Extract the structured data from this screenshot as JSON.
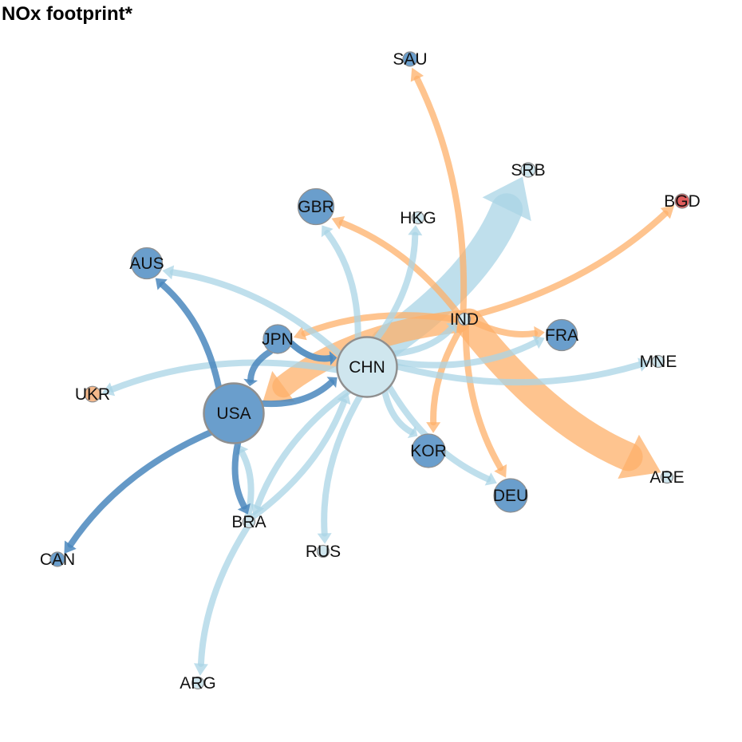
{
  "title": "NOx footprint*",
  "colors": {
    "light_blue": "#a9d4e6",
    "dark_blue": "#4a87bd",
    "orange": "#fdb06a",
    "node_blue": "#6a9ecc",
    "node_light": "#cfe6ee",
    "node_orange": "#f4b88a",
    "node_red": "#e05d5d",
    "node_stroke": "#8f8f8f"
  },
  "nodes": [
    {
      "id": "CHN",
      "label": "CHN",
      "fill": "node_light",
      "size": 5
    },
    {
      "id": "USA",
      "label": "USA",
      "fill": "node_blue",
      "size": 5
    },
    {
      "id": "IND",
      "label": "IND",
      "fill": "node_light",
      "size": 1
    },
    {
      "id": "SAU",
      "label": "SAU",
      "fill": "node_blue",
      "size": 1.2
    },
    {
      "id": "SRB",
      "label": "SRB",
      "fill": "node_light",
      "size": 1.2
    },
    {
      "id": "BGD",
      "label": "BGD",
      "fill": "node_red",
      "size": 1.2
    },
    {
      "id": "GBR",
      "label": "GBR",
      "fill": "node_blue",
      "size": 3
    },
    {
      "id": "HKG",
      "label": "HKG",
      "fill": "node_light",
      "size": 1
    },
    {
      "id": "AUS",
      "label": "AUS",
      "fill": "node_blue",
      "size": 2.6
    },
    {
      "id": "JPN",
      "label": "JPN",
      "fill": "node_blue",
      "size": 2.4
    },
    {
      "id": "FRA",
      "label": "FRA",
      "fill": "node_blue",
      "size": 2.6
    },
    {
      "id": "MNE",
      "label": "MNE",
      "fill": "node_light",
      "size": 1
    },
    {
      "id": "UKR",
      "label": "UKR",
      "fill": "node_orange",
      "size": 1.3
    },
    {
      "id": "KOR",
      "label": "KOR",
      "fill": "node_blue",
      "size": 2.8
    },
    {
      "id": "DEU",
      "label": "DEU",
      "fill": "node_blue",
      "size": 2.8
    },
    {
      "id": "ARE",
      "label": "ARE",
      "fill": "node_light",
      "size": 1
    },
    {
      "id": "BRA",
      "label": "BRA",
      "fill": "node_light",
      "size": 1
    },
    {
      "id": "CAN",
      "label": "CAN",
      "fill": "node_blue",
      "size": 1.2
    },
    {
      "id": "RUS",
      "label": "RUS",
      "fill": "node_light",
      "size": 1
    },
    {
      "id": "ARG",
      "label": "ARG",
      "fill": "node_light",
      "size": 1
    }
  ],
  "edges": [
    {
      "from": "CHN",
      "to": "SRB",
      "color": "light_blue",
      "weight": 10
    },
    {
      "from": "IND",
      "to": "ARE",
      "color": "orange",
      "weight": 9
    },
    {
      "from": "IND",
      "to": "USA",
      "color": "orange",
      "weight": 7
    },
    {
      "from": "IND",
      "to": "SAU",
      "color": "orange",
      "weight": 2
    },
    {
      "from": "IND",
      "to": "BGD",
      "color": "orange",
      "weight": 2
    },
    {
      "from": "IND",
      "to": "GBR",
      "color": "orange",
      "weight": 2
    },
    {
      "from": "IND",
      "to": "JPN",
      "color": "orange",
      "weight": 2
    },
    {
      "from": "IND",
      "to": "FRA",
      "color": "orange",
      "weight": 2
    },
    {
      "from": "IND",
      "to": "KOR",
      "color": "orange",
      "weight": 2
    },
    {
      "from": "IND",
      "to": "DEU",
      "color": "orange",
      "weight": 2
    },
    {
      "from": "CHN",
      "to": "HKG",
      "color": "light_blue",
      "weight": 2
    },
    {
      "from": "CHN",
      "to": "GBR",
      "color": "light_blue",
      "weight": 2
    },
    {
      "from": "CHN",
      "to": "IND",
      "color": "light_blue",
      "weight": 2
    },
    {
      "from": "CHN",
      "to": "FRA",
      "color": "light_blue",
      "weight": 2
    },
    {
      "from": "CHN",
      "to": "MNE",
      "color": "light_blue",
      "weight": 2
    },
    {
      "from": "CHN",
      "to": "KOR",
      "color": "light_blue",
      "weight": 2
    },
    {
      "from": "CHN",
      "to": "DEU",
      "color": "light_blue",
      "weight": 2
    },
    {
      "from": "CHN",
      "to": "RUS",
      "color": "light_blue",
      "weight": 2
    },
    {
      "from": "CHN",
      "to": "AUS",
      "color": "light_blue",
      "weight": 2
    },
    {
      "from": "CHN",
      "to": "UKR",
      "color": "light_blue",
      "weight": 2
    },
    {
      "from": "CHN",
      "to": "BRA",
      "color": "light_blue",
      "weight": 2
    },
    {
      "from": "JPN",
      "to": "CHN",
      "color": "light_blue",
      "weight": 2
    },
    {
      "from": "BRA",
      "to": "CHN",
      "color": "light_blue",
      "weight": 2
    },
    {
      "from": "BRA",
      "to": "USA",
      "color": "light_blue",
      "weight": 2
    },
    {
      "from": "BRA",
      "to": "ARG",
      "color": "light_blue",
      "weight": 2
    },
    {
      "from": "USA",
      "to": "AUS",
      "color": "dark_blue",
      "weight": 2
    },
    {
      "from": "USA",
      "to": "CAN",
      "color": "dark_blue",
      "weight": 2
    },
    {
      "from": "USA",
      "to": "BRA",
      "color": "dark_blue",
      "weight": 2
    },
    {
      "from": "USA",
      "to": "CHN",
      "color": "dark_blue",
      "weight": 2
    },
    {
      "from": "JPN",
      "to": "USA",
      "color": "dark_blue",
      "weight": 2
    },
    {
      "from": "JPN",
      "to": "CHN",
      "color": "dark_blue",
      "weight": 2
    }
  ]
}
